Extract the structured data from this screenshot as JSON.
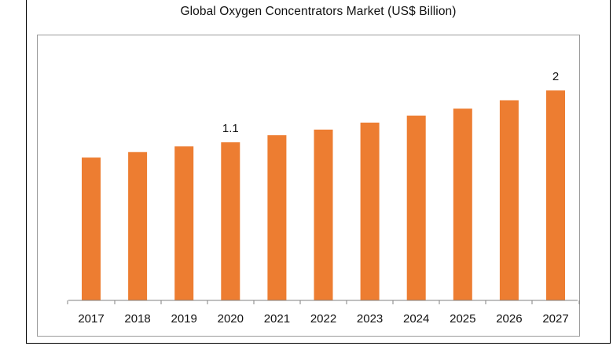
{
  "chart_data": {
    "type": "bar",
    "title": "Global Oxygen Concentrators Market (US$ Billion)",
    "xlabel": "",
    "ylabel": "",
    "categories": [
      "2017",
      "2018",
      "2019",
      "2020",
      "2021",
      "2022",
      "2023",
      "2024",
      "2025",
      "2026",
      "2027"
    ],
    "values": [
      1.02,
      1.06,
      1.1,
      1.13,
      1.18,
      1.22,
      1.27,
      1.32,
      1.37,
      1.43,
      1.5
    ],
    "data_labels": [
      {
        "category": "2020",
        "text": "1.1"
      },
      {
        "category": "2027",
        "text": "2"
      }
    ],
    "ylim": [
      0,
      1.5
    ],
    "grid": false,
    "legend": "none",
    "bar_color": "#ED7D31",
    "axis_color": "#808080"
  }
}
